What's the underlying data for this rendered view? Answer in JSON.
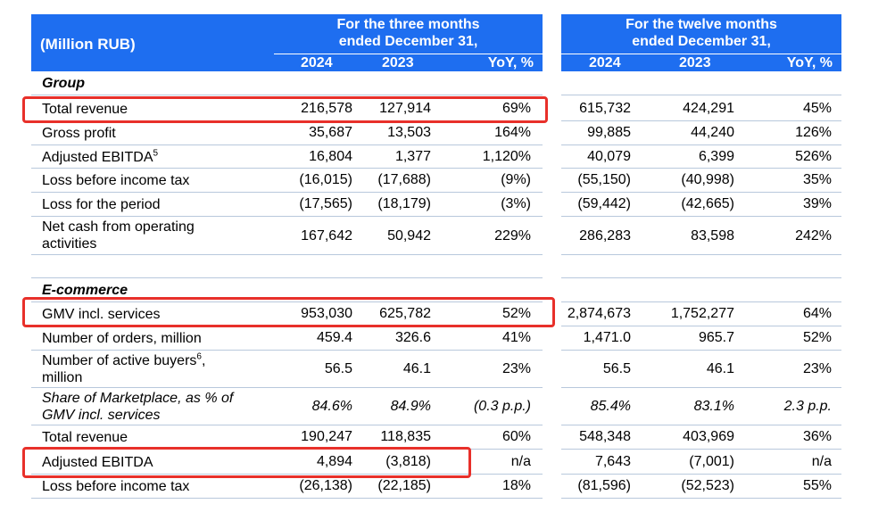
{
  "header": {
    "unit_label": "(Million RUB)",
    "three_month_title_line1": "For the three months",
    "three_month_title_line2": "ended December 31,",
    "twelve_month_title_line1": "For the twelve months",
    "twelve_month_title_line2": "ended December 31,",
    "col_2024": "2024",
    "col_2023": "2023",
    "col_yoy": "YoY, %"
  },
  "group": {
    "title": "Group",
    "rows": [
      {
        "label": "Total revenue",
        "q24": "216,578",
        "q23": "127,914",
        "qyoy": "69%",
        "y24": "615,732",
        "y23": "424,291",
        "yyoy": "45%"
      },
      {
        "label": "Gross profit",
        "q24": "35,687",
        "q23": "13,503",
        "qyoy": "164%",
        "y24": "99,885",
        "y23": "44,240",
        "yyoy": "126%"
      },
      {
        "label": "Adjusted EBITDA",
        "sup": "5",
        "q24": "16,804",
        "q23": "1,377",
        "qyoy": "1,120%",
        "y24": "40,079",
        "y23": "6,399",
        "yyoy": "526%"
      },
      {
        "label": "Loss before income tax",
        "q24": "(16,015)",
        "q23": "(17,688)",
        "qyoy": "(9%)",
        "y24": "(55,150)",
        "y23": "(40,998)",
        "yyoy": "35%"
      },
      {
        "label": "Loss for the period",
        "q24": "(17,565)",
        "q23": "(18,179)",
        "qyoy": "(3%)",
        "y24": "(59,442)",
        "y23": "(42,665)",
        "yyoy": "39%"
      },
      {
        "label_line1": "Net cash from operating",
        "label_line2": "activities",
        "q24": "167,642",
        "q23": "50,942",
        "qyoy": "229%",
        "y24": "286,283",
        "y23": "83,598",
        "yyoy": "242%"
      }
    ]
  },
  "ecommerce": {
    "title": "E-commerce",
    "rows": [
      {
        "label": "GMV incl. services",
        "q24": "953,030",
        "q23": "625,782",
        "qyoy": "52%",
        "y24": "2,874,673",
        "y23": "1,752,277",
        "yyoy": "64%"
      },
      {
        "label": "Number of orders, million",
        "q24": "459.4",
        "q23": "326.6",
        "qyoy": "41%",
        "y24": "1,471.0",
        "y23": "965.7",
        "yyoy": "52%"
      },
      {
        "label_line1": "Number of active buyers",
        "sup": "6",
        "label_line1_suffix": ",",
        "label_line2": "million",
        "q24": "56.5",
        "q23": "46.1",
        "qyoy": "23%",
        "y24": "56.5",
        "y23": "46.1",
        "yyoy": "23%"
      },
      {
        "label_line1": "Share of Marketplace, as % of",
        "label_line2": "GMV incl. services",
        "q24": "84.6%",
        "q23": "84.9%",
        "qyoy": "(0.3 p.p.)",
        "y24": "85.4%",
        "y23": "83.1%",
        "yyoy": "2.3 p.p."
      },
      {
        "label": "Total revenue",
        "q24": "190,247",
        "q23": "118,835",
        "qyoy": "60%",
        "y24": "548,348",
        "y23": "403,969",
        "yyoy": "36%"
      },
      {
        "label": "Adjusted EBITDA",
        "q24": "4,894",
        "q23": "(3,818)",
        "qyoy": "n/a",
        "y24": "7,643",
        "y23": "(7,001)",
        "yyoy": "n/a"
      },
      {
        "label": "Loss before income tax",
        "q24": "(26,138)",
        "q23": "(22,185)",
        "qyoy": "18%",
        "y24": "(81,596)",
        "y23": "(52,523)",
        "yyoy": "55%"
      }
    ]
  },
  "highlight_color": "#e8302a",
  "header_color": "#1e6ef0"
}
